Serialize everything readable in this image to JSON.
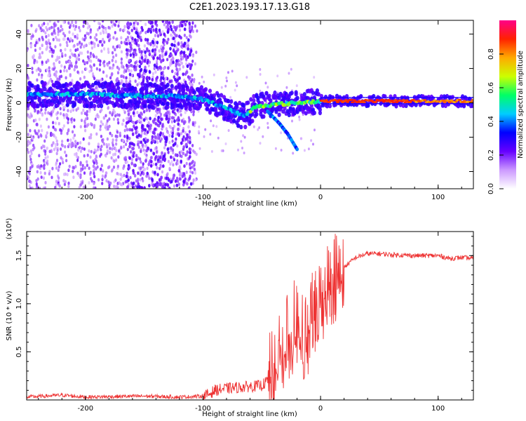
{
  "title": "C2E1.2023.193.17.13.G18",
  "chart_data": [
    {
      "type": "heatmap",
      "xlabel": "Height of straight line (km)",
      "ylabel": "Frequency (Hz)",
      "xlim": [
        -250,
        130
      ],
      "ylim": [
        -50,
        48
      ],
      "xticks": [
        -200,
        -100,
        0,
        100
      ],
      "yticks": [
        -40,
        -20,
        0,
        20,
        40
      ],
      "ridge": {
        "description_points_km_hz": [
          [
            -250,
            5
          ],
          [
            -200,
            5
          ],
          [
            -150,
            4
          ],
          [
            -120,
            4
          ],
          [
            -100,
            2
          ],
          [
            -80,
            -3
          ],
          [
            -65,
            -8
          ],
          [
            -55,
            -2
          ],
          [
            -40,
            -1
          ],
          [
            -20,
            0
          ],
          [
            0,
            1
          ],
          [
            40,
            1
          ],
          [
            80,
            1
          ],
          [
            100,
            1
          ],
          [
            130,
            1
          ]
        ],
        "branch": [
          [
            -45,
            -5
          ],
          [
            -35,
            -12
          ],
          [
            -28,
            -18
          ],
          [
            -20,
            -27
          ]
        ]
      },
      "colorbar": {
        "label": "Normalized spectral amplitude",
        "ticks": [
          0.0,
          0.2,
          0.4,
          0.6,
          0.8
        ],
        "range": [
          0,
          1
        ],
        "colors": [
          "#ffffff",
          "#cc99ff",
          "#6600ff",
          "#0000ff",
          "#00ccff",
          "#00ff66",
          "#ccff00",
          "#ffaa00",
          "#ff2200",
          "#ff0088"
        ]
      }
    },
    {
      "type": "line",
      "xlabel": "Height of straight line (km)",
      "ylabel": "SNR (10 * v/v)",
      "scale_label": "(x10⁴)",
      "xlim": [
        -250,
        130
      ],
      "ylim": [
        0,
        1.75
      ],
      "xticks": [
        -200,
        -100,
        0,
        100
      ],
      "yticks": [
        "0.5",
        "1.0",
        "1.5"
      ],
      "ytick_values": [
        0.5,
        1.0,
        1.5
      ],
      "color": "#ee3333",
      "series": [
        {
          "x": [
            -250,
            -220,
            -200,
            -150,
            -120,
            -100,
            -95,
            -90,
            -80,
            -70,
            -60,
            -50,
            -45,
            -40,
            -35,
            -30,
            -25,
            -20,
            -15,
            -10,
            -5,
            0,
            5,
            10,
            15,
            20,
            25,
            30,
            40,
            50,
            60,
            80,
            100,
            110,
            120,
            130
          ],
          "values": [
            0.03,
            0.05,
            0.03,
            0.04,
            0.03,
            0.04,
            0.06,
            0.1,
            0.12,
            0.13,
            0.14,
            0.15,
            0.2,
            0.35,
            0.55,
            0.7,
            0.75,
            0.85,
            0.7,
            0.8,
            0.95,
            1.05,
            1.2,
            1.3,
            1.35,
            1.38,
            1.43,
            1.48,
            1.52,
            1.52,
            1.51,
            1.5,
            1.5,
            1.47,
            1.48,
            1.47
          ]
        }
      ]
    }
  ]
}
